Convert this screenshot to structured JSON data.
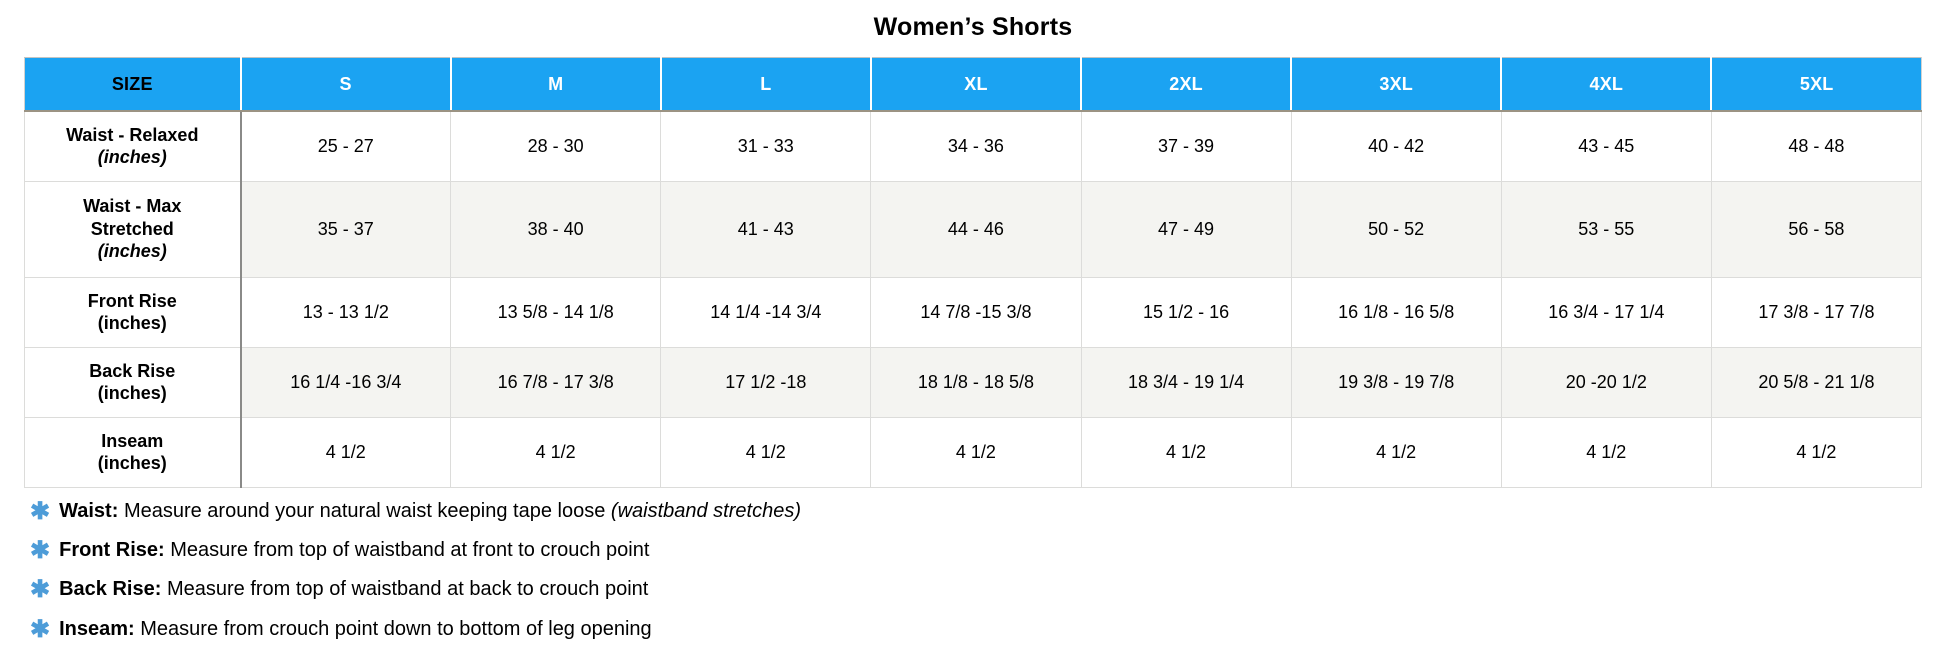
{
  "title": "Women’s Shorts",
  "table": {
    "columns": [
      "SIZE",
      "S",
      "M",
      "L",
      "XL",
      "2XL",
      "3XL",
      "4XL",
      "5XL"
    ],
    "rows": [
      {
        "label_lines": [
          "Waist - Relaxed"
        ],
        "unit": "(inches)",
        "unit_italic": true,
        "shaded": false,
        "values": [
          "25 - 27",
          "28 - 30",
          "31 - 33",
          "34 - 36",
          "37 - 39",
          "40 - 42",
          "43 - 45",
          "48 - 48"
        ]
      },
      {
        "label_lines": [
          "Waist - Max",
          "Stretched"
        ],
        "unit": "(inches)",
        "unit_italic": true,
        "shaded": true,
        "values": [
          "35 - 37",
          "38 - 40",
          "41 - 43",
          "44 - 46",
          "47 - 49",
          "50 - 52",
          "53 - 55",
          "56 - 58"
        ]
      },
      {
        "label_lines": [
          "Front Rise"
        ],
        "unit": "(inches)",
        "unit_italic": false,
        "shaded": false,
        "values": [
          "13 - 13 1/2",
          "13 5/8 - 14 1/8",
          "14 1/4 -14 3/4",
          "14 7/8 -15 3/8",
          "15 1/2 - 16",
          "16 1/8 - 16 5/8",
          "16 3/4 - 17 1/4",
          "17 3/8 - 17 7/8"
        ]
      },
      {
        "label_lines": [
          "Back Rise"
        ],
        "unit": "(inches)",
        "unit_italic": false,
        "shaded": true,
        "values": [
          "16 1/4 -16 3/4",
          "16 7/8 - 17 3/8",
          "17 1/2 -18",
          "18 1/8 - 18 5/8",
          "18 3/4 - 19 1/4",
          "19 3/8 - 19 7/8",
          "20 -20 1/2",
          "20 5/8 - 21 1/8"
        ]
      },
      {
        "label_lines": [
          "Inseam"
        ],
        "unit": "(inches)",
        "unit_italic": false,
        "shaded": false,
        "values": [
          "4 1/2",
          "4 1/2",
          "4 1/2",
          "4 1/2",
          "4 1/2",
          "4 1/2",
          "4 1/2",
          "4 1/2"
        ]
      }
    ]
  },
  "footnotes": [
    {
      "icon": "✱",
      "term": "Waist:",
      "text": "Measure around your natural waist keeping tape loose ",
      "italic_suffix": "(waistband stretches)"
    },
    {
      "icon": "✱",
      "term": "Front Rise:",
      "text": "Measure from top of waistband at front to crouch point",
      "italic_suffix": ""
    },
    {
      "icon": "✱",
      "term": "Back Rise:",
      "text": "Measure from top of waistband at back to crouch point",
      "italic_suffix": ""
    },
    {
      "icon": "✱",
      "term": "Inseam:",
      "text": "Measure from crouch point down to bottom of leg opening",
      "italic_suffix": ""
    }
  ],
  "colors": {
    "header_bg": "#1ba3f2",
    "header_text": "#ffffff",
    "size_header_text": "#000000",
    "header_underline": "#9b9383",
    "shaded_row_bg": "#f4f4f1",
    "grid_line": "#dcdcda",
    "label_divider": "#8a8a88",
    "asterisk_blue": "#4d9cd8"
  }
}
